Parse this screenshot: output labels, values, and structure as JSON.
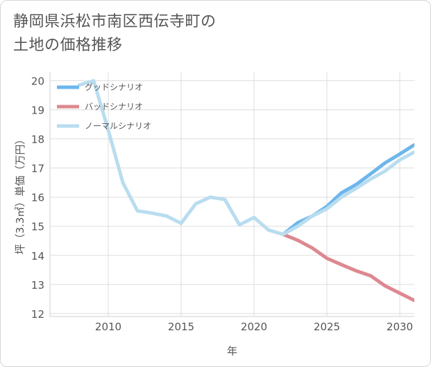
{
  "page": {
    "title_line1": "静岡県浜松市南区西伝寺町の",
    "title_line2": "土地の価格推移"
  },
  "chart_data": {
    "type": "line",
    "title": "静岡県浜松市南区西伝寺町の土地の価格推移",
    "xlabel": "年",
    "ylabel": "坪（3.3㎡）単価（万円）",
    "xlim": [
      2006,
      2031
    ],
    "ylim": [
      11.9,
      20.3
    ],
    "x_ticks": [
      2010,
      2015,
      2020,
      2025,
      2030
    ],
    "y_ticks": [
      12,
      13,
      14,
      15,
      16,
      17,
      18,
      19,
      20
    ],
    "grid": true,
    "legend_position": "top-left",
    "series": [
      {
        "name": "グッドシナリオ",
        "color": "#6cb6ec",
        "x": [
          2022,
          2023,
          2024,
          2025,
          2026,
          2027,
          2028,
          2029,
          2030,
          2031
        ],
        "values": [
          14.72,
          15.12,
          15.35,
          15.68,
          16.15,
          16.43,
          16.8,
          17.18,
          17.48,
          17.8
        ]
      },
      {
        "name": "バッドシナリオ",
        "color": "#dd8890",
        "x": [
          2022,
          2023,
          2024,
          2025,
          2026,
          2027,
          2028,
          2029,
          2030,
          2031
        ],
        "values": [
          14.72,
          14.52,
          14.25,
          13.9,
          13.68,
          13.47,
          13.3,
          12.95,
          12.7,
          12.45
        ]
      },
      {
        "name": "ノーマルシナリオ",
        "color": "#b9ddef",
        "x": [
          2008,
          2009,
          2010,
          2011,
          2012,
          2013,
          2014,
          2015,
          2016,
          2017,
          2018,
          2019,
          2020,
          2021,
          2022,
          2023,
          2024,
          2025,
          2026,
          2027,
          2028,
          2029,
          2030,
          2031
        ],
        "values": [
          19.85,
          20.0,
          18.3,
          16.5,
          15.53,
          15.45,
          15.35,
          15.1,
          15.77,
          16.0,
          15.92,
          15.05,
          15.3,
          14.87,
          14.72,
          15.0,
          15.35,
          15.6,
          16.0,
          16.3,
          16.62,
          16.9,
          17.28,
          17.55
        ]
      }
    ]
  }
}
